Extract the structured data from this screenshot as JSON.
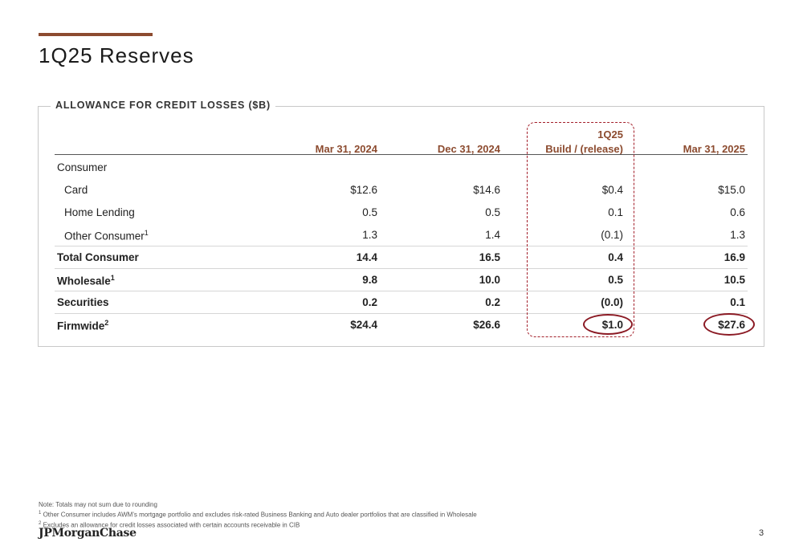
{
  "page": {
    "title": "1Q25 Reserves",
    "page_number": "3"
  },
  "panel": {
    "label": "ALLOWANCE FOR CREDIT LOSSES ($B)"
  },
  "columns": {
    "c1": "Mar 31, 2024",
    "c2": "Dec 31, 2024",
    "c3_line1": "1Q25",
    "c3_line2": "Build / (release)",
    "c4": "Mar 31, 2025"
  },
  "rows": [
    {
      "label": "Consumer",
      "values": [
        "",
        "",
        "",
        ""
      ]
    },
    {
      "label": "Card",
      "values": [
        "$12.6",
        "$14.6",
        "$0.4",
        "$15.0"
      ]
    },
    {
      "label": "Home Lending",
      "values": [
        "0.5",
        "0.5",
        "0.1",
        "0.6"
      ]
    },
    {
      "label": "Other Consumer",
      "sup": "1",
      "values": [
        "1.3",
        "1.4",
        "(0.1)",
        "1.3"
      ]
    },
    {
      "label": "Total Consumer",
      "values": [
        "14.4",
        "16.5",
        "0.4",
        "16.9"
      ]
    },
    {
      "label": "Wholesale",
      "sup": "1",
      "values": [
        "9.8",
        "10.0",
        "0.5",
        "10.5"
      ]
    },
    {
      "label": "Securities",
      "values": [
        "0.2",
        "0.2",
        "(0.0)",
        "0.1"
      ]
    },
    {
      "label": "Firmwide",
      "sup": "2",
      "values": [
        "$24.4",
        "$26.6",
        "$1.0",
        "$27.6"
      ]
    }
  ],
  "notes": {
    "line1": "Note: Totals may not sum due to rounding",
    "line2_sup": "1",
    "line2": "Other Consumer includes AWM's mortgage portfolio and excludes risk-rated Business Banking and Auto dealer portfolios that are classified in Wholesale",
    "line3_sup": "2",
    "line3": "Excludes an allowance for credit losses associated with certain accounts receivable in CIB"
  },
  "logo": {
    "text": "JPMorganChase"
  },
  "colors": {
    "accent": "#8c4b2f",
    "highlight": "#8b1a24"
  }
}
